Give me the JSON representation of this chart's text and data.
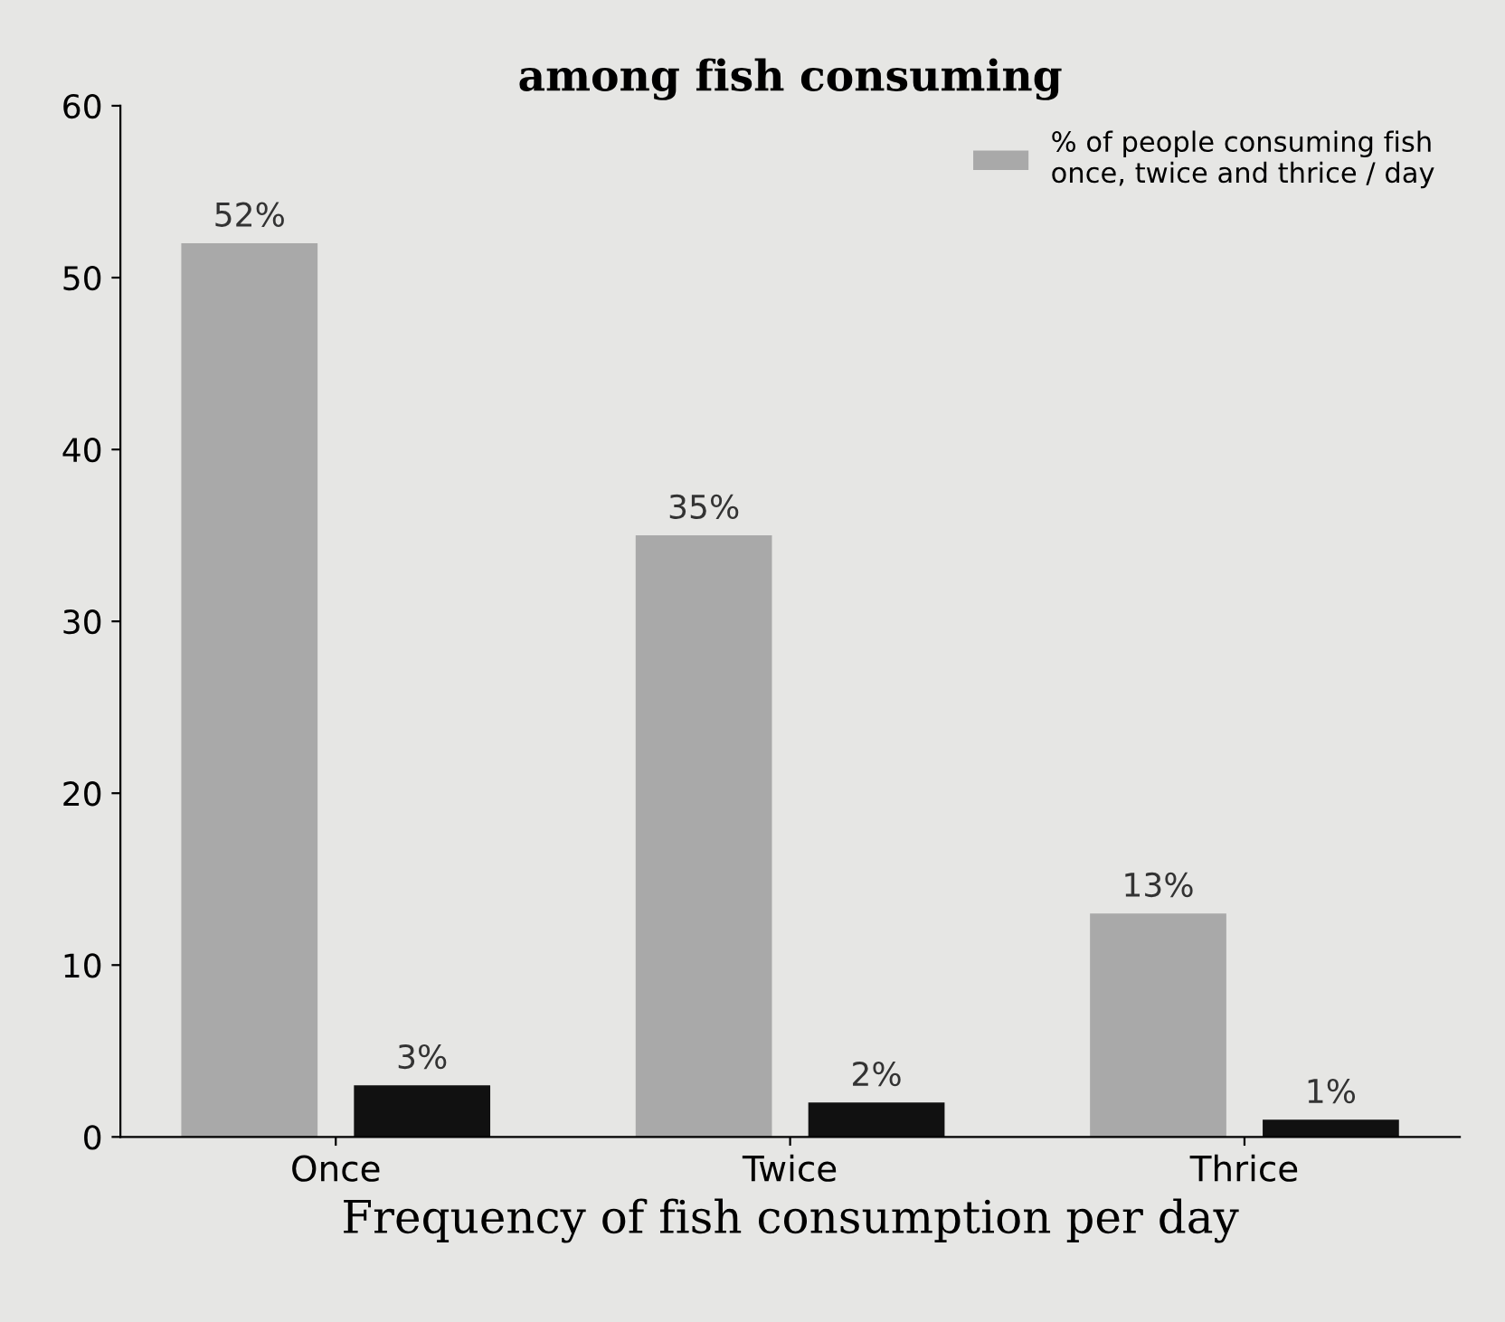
{
  "chart_data": {
    "type": "bar",
    "title": "among fish consuming",
    "xlabel": "Frequency of fish consumption per day",
    "categories": [
      "Once",
      "Twice",
      "Thrice"
    ],
    "series": [
      {
        "name": "% of people consuming fish\nonce, twice and thrice / day",
        "color": "#a9a9a9",
        "values": [
          52,
          35,
          13
        ],
        "value_labels": [
          "52%",
          "35%",
          "13%"
        ]
      },
      {
        "color": "#111111",
        "values": [
          3,
          2,
          1
        ],
        "value_labels": [
          "3%",
          "2%",
          "1%"
        ]
      }
    ],
    "ylim": [
      0,
      60
    ],
    "yticks": [
      0,
      10,
      20,
      30,
      40,
      50,
      60
    ],
    "grid": false,
    "legend": "top right"
  }
}
